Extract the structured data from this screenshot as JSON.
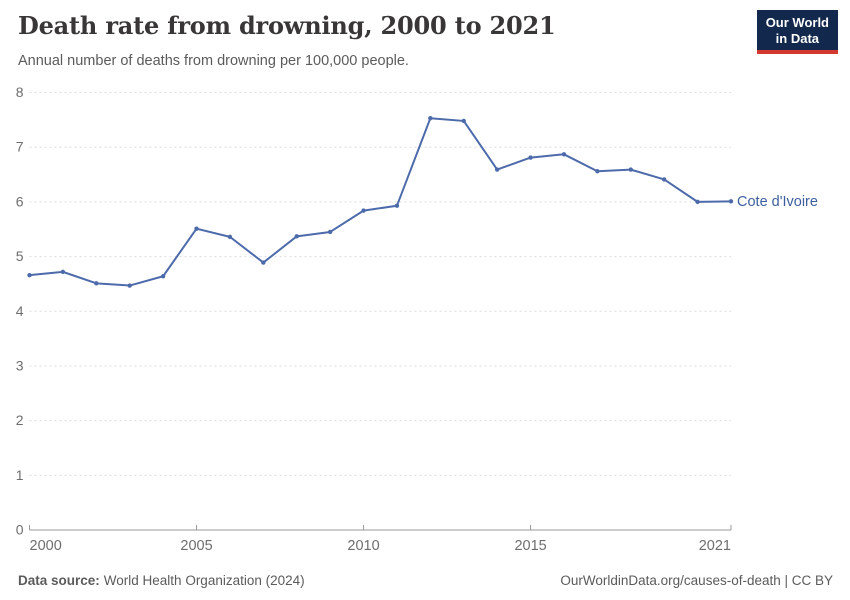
{
  "header": {
    "logo": {
      "line1": "Our World",
      "line2": "in Data"
    }
  },
  "chart_data": {
    "type": "line",
    "title": "Death rate from drowning, 2000 to 2021",
    "subtitle": "Annual number of deaths from drowning per 100,000 people.",
    "xlabel": "",
    "ylabel": "",
    "xlim": [
      2000,
      2021
    ],
    "ylim": [
      0,
      8
    ],
    "xticks": [
      2000,
      2005,
      2010,
      2015,
      2021
    ],
    "yticks": [
      0,
      1,
      2,
      3,
      4,
      5,
      6,
      7,
      8
    ],
    "grid": "horizontal-dashed",
    "legend_position": "end-of-line-label",
    "series": [
      {
        "name": "Cote d'Ivoire",
        "color": "#4d6bab",
        "x": [
          2000,
          2001,
          2002,
          2003,
          2004,
          2005,
          2006,
          2007,
          2008,
          2009,
          2010,
          2011,
          2012,
          2013,
          2014,
          2015,
          2016,
          2017,
          2018,
          2019,
          2020,
          2021
        ],
        "values": [
          4.66,
          4.72,
          4.51,
          4.47,
          4.64,
          5.51,
          5.36,
          4.89,
          5.37,
          5.45,
          5.84,
          5.93,
          7.53,
          7.48,
          6.59,
          6.81,
          6.87,
          6.56,
          6.59,
          6.41,
          6.0,
          6.01
        ]
      }
    ]
  },
  "footer": {
    "source_label": "Data source:",
    "source_text": "World Health Organization (2024)",
    "credit": "OurWorldinData.org/causes-of-death | CC BY"
  },
  "colors": {
    "accent": "#4d6bab",
    "entity_label": "#3d5f9f",
    "grid": "#dcdcdc",
    "axis": "#999999",
    "tick_text": "#6e6e6e",
    "title_text": "#383636",
    "subtitle_text": "#5b5b5b",
    "footer_text": "#5b5b5b",
    "logo_bg": "#12284c",
    "logo_red": "#d3392e"
  }
}
